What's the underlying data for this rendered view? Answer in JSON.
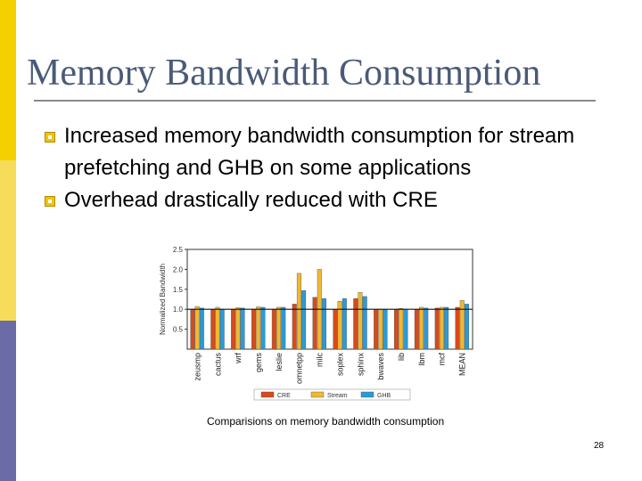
{
  "slide": {
    "title": "Memory Bandwidth Consumption",
    "bullets": [
      "Increased memory bandwidth consumption for stream prefetching and GHB on some applications",
      "Overhead drastically reduced with CRE"
    ],
    "caption": "Comparisions on memory bandwidth consumption",
    "page_number": "28"
  },
  "colors": {
    "sidebar_top": "#f4d000",
    "sidebar_mid": "#f6dc5a",
    "sidebar_bottom": "#6b6ba8",
    "title": "#4a5a78",
    "bullet": "#f0c400",
    "CRE": "#d84a1b",
    "Stream": "#f0b830",
    "GHB": "#2a9ad8"
  },
  "chart_data": {
    "type": "bar",
    "ylabel": "Normalized Bandwidth",
    "ylim": [
      0,
      2.5
    ],
    "yticks": [
      "0.5",
      "1.0",
      "1.5",
      "2.0",
      "2.5"
    ],
    "grid": false,
    "legend_position": "bottom",
    "categories": [
      "zeusmp",
      "cactus",
      "wrf",
      "gems",
      "leslie",
      "omnetpp",
      "milc",
      "soplex",
      "sphinx",
      "bwaves",
      "lib",
      "lbm",
      "mcf",
      "MEAN"
    ],
    "series": [
      {
        "name": "CRE",
        "values": [
          1.0,
          1.0,
          1.0,
          1.0,
          1.0,
          1.13,
          1.3,
          1.0,
          1.27,
          1.0,
          1.0,
          1.0,
          1.03,
          1.05
        ]
      },
      {
        "name": "Stream",
        "values": [
          1.07,
          1.05,
          1.04,
          1.06,
          1.05,
          1.9,
          2.0,
          1.2,
          1.42,
          1.0,
          1.02,
          1.05,
          1.05,
          1.22
        ]
      },
      {
        "name": "GHB",
        "values": [
          1.03,
          1.0,
          1.03,
          1.05,
          1.05,
          1.47,
          1.27,
          1.27,
          1.32,
          1.0,
          1.0,
          1.03,
          1.05,
          1.13
        ]
      }
    ]
  }
}
